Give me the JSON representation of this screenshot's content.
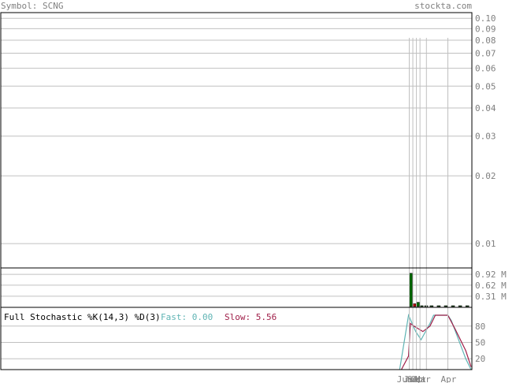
{
  "header": {
    "symbol_text": "Symbol: SCNG",
    "site_text": "stockta.com"
  },
  "colors": {
    "frame": "#000000",
    "grid": "#c0c0c0",
    "header_text": "#808080",
    "axis_text": "#808080",
    "volume_up": "#006400",
    "volume_down": "#b00000",
    "fast_line": "#5fb4b4",
    "slow_line": "#a0204a"
  },
  "chart_data": [
    {
      "type": "line",
      "name": "price-panel",
      "scale": "log",
      "ylim": [
        0.0078,
        0.106
      ],
      "y_ticks": [
        0.1,
        0.09,
        0.08,
        0.07,
        0.06,
        0.05,
        0.04,
        0.03,
        0.02,
        0.01
      ],
      "y_tick_labels": [
        "0.10",
        "0.09",
        "0.08",
        "0.07",
        "0.06",
        "0.05",
        "0.04",
        "0.03",
        "0.02",
        "0.01"
      ],
      "grid": true
    },
    {
      "type": "bar",
      "name": "volume-panel",
      "ylim": [
        0,
        1.1
      ],
      "y_ticks": [
        0.92,
        0.62,
        0.31
      ],
      "y_tick_labels": [
        "0.92 M",
        "0.62 M",
        "0.31 M"
      ],
      "bars": [
        {
          "t": 0.2,
          "value": 0.95,
          "direction": "up"
        },
        {
          "t": 1.2,
          "value": 0.1,
          "direction": "down"
        },
        {
          "t": 2.2,
          "value": 0.14,
          "direction": "up"
        },
        {
          "t": 3.2,
          "value": 0.02,
          "direction": "up"
        },
        {
          "t": 4.5,
          "value": 0.02,
          "direction": "up"
        },
        {
          "t": 6.0,
          "value": 0.02,
          "direction": "up"
        },
        {
          "t": 8.0,
          "value": 0.02,
          "direction": "up"
        },
        {
          "t": 10.0,
          "value": 0.02,
          "direction": "up"
        },
        {
          "t": 12.0,
          "value": 0.02,
          "direction": "up"
        },
        {
          "t": 14.0,
          "value": 0.02,
          "direction": "up"
        },
        {
          "t": 16.0,
          "value": 0.02,
          "direction": "up"
        }
      ]
    },
    {
      "type": "line",
      "name": "stochastic-panel",
      "title": "Full Stochastic %K(14,3) %D(3)",
      "fast_label": "Fast: 0.00",
      "slow_label": "Slow: 5.56",
      "ylim": [
        0,
        100
      ],
      "y_ticks": [
        80,
        50,
        20
      ],
      "y_tick_labels": [
        "80",
        "50",
        "20"
      ],
      "series": [
        {
          "role": "fast",
          "points": [
            [
              -2.5,
              0
            ],
            [
              0,
              100
            ],
            [
              2,
              70
            ],
            [
              3.5,
              55
            ],
            [
              6,
              85
            ],
            [
              7,
              100
            ],
            [
              9,
              100
            ],
            [
              11,
              100
            ],
            [
              12,
              90
            ],
            [
              14,
              55
            ],
            [
              16,
              20
            ],
            [
              17.5,
              0
            ]
          ]
        },
        {
          "role": "slow",
          "points": [
            [
              -2,
              0
            ],
            [
              0,
              25
            ],
            [
              0.5,
              85
            ],
            [
              1.5,
              80
            ],
            [
              4,
              70
            ],
            [
              6,
              80
            ],
            [
              7.5,
              100
            ],
            [
              10,
              100
            ],
            [
              11,
              100
            ],
            [
              13,
              75
            ],
            [
              16,
              35
            ],
            [
              17.5,
              5
            ]
          ]
        }
      ]
    }
  ],
  "x_axis": {
    "t_range": [
      -3,
      17.5
    ],
    "labels": [
      {
        "t": -1.3,
        "text": "Jun"
      },
      {
        "t": 0.6,
        "text": "Jul"
      },
      {
        "t": 1.6,
        "text": "Sep"
      },
      {
        "t": 2.6,
        "text": "Oct"
      },
      {
        "t": 3.8,
        "text": "Mar"
      },
      {
        "t": 11.0,
        "text": "Apr"
      }
    ],
    "grid_t": [
      0.2,
      1.2,
      2.2,
      3.2,
      5.0,
      11.0
    ]
  }
}
